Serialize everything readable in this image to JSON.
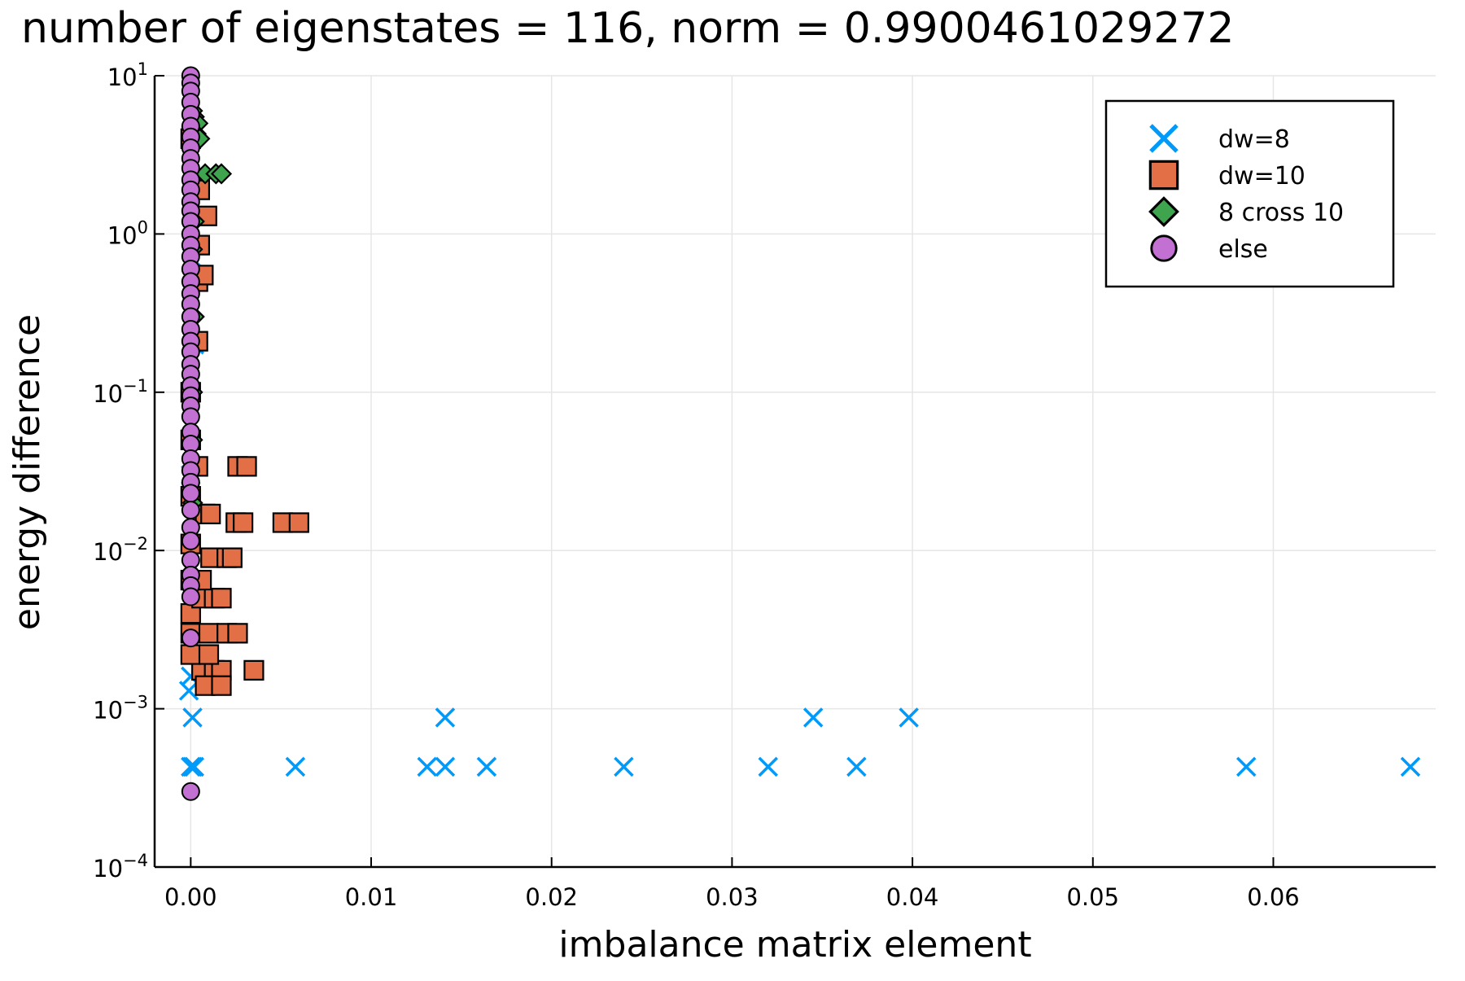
{
  "chart_data": {
    "type": "scatter",
    "title": "number of eigenstates = 116, norm = 0.9900461029272",
    "xlabel": "imbalance matrix element",
    "ylabel": "energy difference",
    "xlim": [
      -0.002,
      0.069
    ],
    "ylim": [
      0.0001,
      10
    ],
    "yscale": "log",
    "grid": true,
    "legend_position": "top-right",
    "x_ticks": [
      {
        "value": 0.0,
        "label": "0.00"
      },
      {
        "value": 0.01,
        "label": "0.01"
      },
      {
        "value": 0.02,
        "label": "0.02"
      },
      {
        "value": 0.03,
        "label": "0.03"
      },
      {
        "value": 0.04,
        "label": "0.04"
      },
      {
        "value": 0.05,
        "label": "0.05"
      },
      {
        "value": 0.06,
        "label": "0.06"
      }
    ],
    "y_ticks": [
      {
        "value": 0.0001,
        "base": "10",
        "exp": "−4"
      },
      {
        "value": 0.001,
        "base": "10",
        "exp": "−3"
      },
      {
        "value": 0.01,
        "base": "10",
        "exp": "−2"
      },
      {
        "value": 0.1,
        "base": "10",
        "exp": "−1"
      },
      {
        "value": 1,
        "base": "10",
        "exp": "0"
      },
      {
        "value": 10,
        "base": "10",
        "exp": "1"
      }
    ],
    "series": [
      {
        "name": "dw=8",
        "marker": "x",
        "color": "#009AFA",
        "points": [
          [
            0.0,
            0.00043
          ],
          [
            0.0001,
            0.00043
          ],
          [
            0.0002,
            0.00043
          ],
          [
            0.0001,
            0.00088
          ],
          [
            -0.0001,
            0.0013
          ],
          [
            0.0,
            0.0016
          ],
          [
            0.0058,
            0.00043
          ],
          [
            0.0131,
            0.00043
          ],
          [
            0.0141,
            0.00043
          ],
          [
            0.0164,
            0.00043
          ],
          [
            0.024,
            0.00043
          ],
          [
            0.032,
            0.00043
          ],
          [
            0.0369,
            0.00043
          ],
          [
            0.0585,
            0.00043
          ],
          [
            0.0676,
            0.00043
          ],
          [
            0.0141,
            0.00088
          ],
          [
            0.0345,
            0.00088
          ],
          [
            0.0398,
            0.00088
          ],
          [
            0.0001,
            0.005
          ],
          [
            0.0,
            0.03
          ],
          [
            0.0002,
            0.2
          ],
          [
            0.0001,
            0.7
          ],
          [
            0.0002,
            2.0
          ],
          [
            0.0001,
            5.0
          ]
        ]
      },
      {
        "name": "dw=10",
        "marker": "square",
        "color": "#E26F46",
        "points": [
          [
            0.0006,
            0.00175
          ],
          [
            0.0013,
            0.00175
          ],
          [
            0.0017,
            0.00175
          ],
          [
            0.0035,
            0.00175
          ],
          [
            0.0008,
            0.0014
          ],
          [
            0.0017,
            0.0014
          ],
          [
            0.0,
            0.0022
          ],
          [
            0.001,
            0.0022
          ],
          [
            0.0,
            0.003
          ],
          [
            0.001,
            0.003
          ],
          [
            0.002,
            0.003
          ],
          [
            0.0026,
            0.003
          ],
          [
            0.0,
            0.004
          ],
          [
            0.0006,
            0.005
          ],
          [
            0.0013,
            0.005
          ],
          [
            0.0017,
            0.005
          ],
          [
            0.0,
            0.0065
          ],
          [
            0.0006,
            0.0065
          ],
          [
            0.0011,
            0.009
          ],
          [
            0.002,
            0.009
          ],
          [
            0.0023,
            0.009
          ],
          [
            0.0,
            0.011
          ],
          [
            0.0025,
            0.015
          ],
          [
            0.0029,
            0.015
          ],
          [
            0.0051,
            0.015
          ],
          [
            0.006,
            0.015
          ],
          [
            0.0008,
            0.017
          ],
          [
            0.0011,
            0.017
          ],
          [
            0.0,
            0.022
          ],
          [
            0.0026,
            0.034
          ],
          [
            0.0031,
            0.034
          ],
          [
            0.0004,
            0.034
          ],
          [
            0.0,
            0.05
          ],
          [
            0.0,
            0.1
          ],
          [
            0.0004,
            0.21
          ],
          [
            0.0004,
            0.5
          ],
          [
            0.0007,
            0.55
          ],
          [
            0.0005,
            0.85
          ],
          [
            0.0009,
            1.3
          ],
          [
            0.0005,
            1.9
          ],
          [
            0.0,
            4.0
          ]
        ]
      },
      {
        "name": "8 cross 10",
        "marker": "diamond",
        "color": "#3EA44E",
        "points": [
          [
            0.0001,
            6.0
          ],
          [
            0.0002,
            5.5
          ],
          [
            0.0004,
            5.0
          ],
          [
            0.0003,
            4.3
          ],
          [
            0.0005,
            4.0
          ],
          [
            0.0008,
            2.4
          ],
          [
            0.0014,
            2.4
          ],
          [
            0.0017,
            2.4
          ],
          [
            0.0002,
            1.2
          ],
          [
            0.0001,
            0.8
          ],
          [
            0.0002,
            0.3
          ],
          [
            0.0001,
            0.1
          ],
          [
            0.0001,
            0.05
          ],
          [
            0.0001,
            0.02
          ]
        ]
      },
      {
        "name": "else",
        "marker": "circle",
        "color": "#C271D2",
        "points": [
          [
            0.0,
            10.0
          ],
          [
            0.0,
            9.0
          ],
          [
            0.0,
            8.0
          ],
          [
            0.0,
            6.8
          ],
          [
            0.0,
            5.7
          ],
          [
            0.0,
            4.8
          ],
          [
            0.0,
            4.1
          ],
          [
            0.0,
            3.5
          ],
          [
            0.0,
            3.0
          ],
          [
            0.0,
            2.6
          ],
          [
            0.0,
            2.2
          ],
          [
            0.0,
            1.9
          ],
          [
            0.0,
            1.6
          ],
          [
            0.0,
            1.4
          ],
          [
            0.0,
            1.2
          ],
          [
            0.0,
            1.0
          ],
          [
            0.0,
            0.85
          ],
          [
            0.0,
            0.72
          ],
          [
            0.0,
            0.6
          ],
          [
            0.0,
            0.5
          ],
          [
            0.0,
            0.42
          ],
          [
            0.0,
            0.36
          ],
          [
            0.0,
            0.3
          ],
          [
            0.0,
            0.25
          ],
          [
            0.0,
            0.21
          ],
          [
            0.0,
            0.18
          ],
          [
            0.0,
            0.15
          ],
          [
            0.0,
            0.13
          ],
          [
            0.0,
            0.11
          ],
          [
            0.0,
            0.095
          ],
          [
            0.0,
            0.082
          ],
          [
            0.0,
            0.07
          ],
          [
            0.0,
            0.056
          ],
          [
            0.0,
            0.047
          ],
          [
            0.0,
            0.038
          ],
          [
            0.0,
            0.032
          ],
          [
            0.0,
            0.027
          ],
          [
            0.0,
            0.023
          ],
          [
            0.0,
            0.018
          ],
          [
            0.0,
            0.014
          ],
          [
            0.0,
            0.0115
          ],
          [
            0.0,
            0.0087
          ],
          [
            0.0,
            0.007
          ],
          [
            0.0,
            0.006
          ],
          [
            0.0,
            0.0051
          ],
          [
            0.0,
            0.0028
          ],
          [
            0.0,
            0.0003
          ]
        ]
      }
    ]
  }
}
